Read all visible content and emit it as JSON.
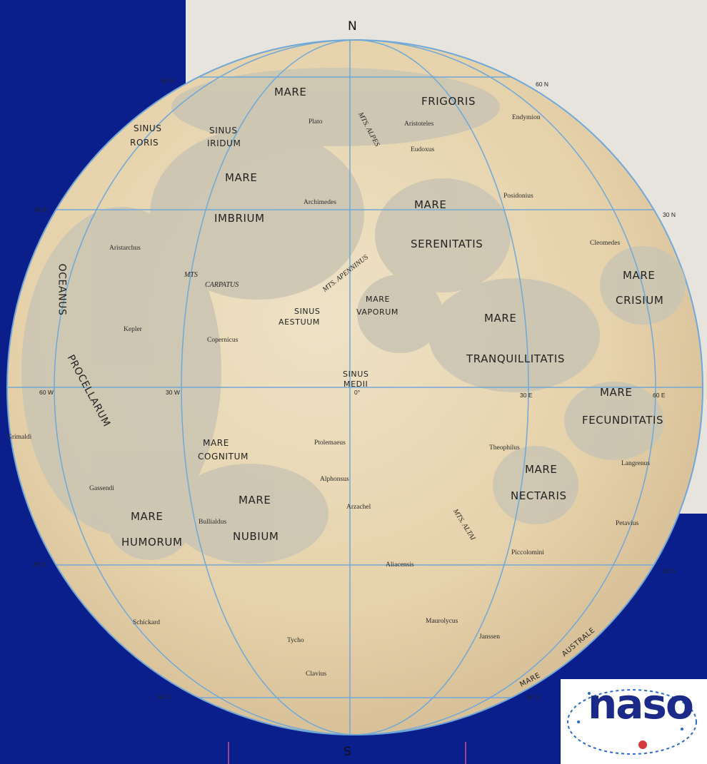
{
  "poles": {
    "north": "N",
    "south": "S"
  },
  "grid_labels": [
    {
      "text": "60 N"
    },
    {
      "text": "60 N"
    },
    {
      "text": "30 N"
    },
    {
      "text": "30 N"
    },
    {
      "text": "60 W"
    },
    {
      "text": "30 W"
    },
    {
      "text": "0°"
    },
    {
      "text": "30 E"
    },
    {
      "text": "60 E"
    },
    {
      "text": "30 S"
    },
    {
      "text": "30 S"
    },
    {
      "text": "60 S"
    },
    {
      "text": "60 S"
    }
  ],
  "maria": [
    {
      "text": "MARE"
    },
    {
      "text": "FRIGORIS"
    },
    {
      "text": "SINUS"
    },
    {
      "text": "RORIS"
    },
    {
      "text": "SINUS"
    },
    {
      "text": "IRIDUM"
    },
    {
      "text": "MARE"
    },
    {
      "text": "IMBRIUM"
    },
    {
      "text": "MARE"
    },
    {
      "text": "SERENITATIS"
    },
    {
      "text": "OCEANUS"
    },
    {
      "text": "MARE"
    },
    {
      "text": "CRISIUM"
    },
    {
      "text": "SINUS"
    },
    {
      "text": "AESTUUM"
    },
    {
      "text": "MARE"
    },
    {
      "text": "VAPORUM"
    },
    {
      "text": "MARE"
    },
    {
      "text": "TRANQUILLITATIS"
    },
    {
      "text": "PROCELLARUM"
    },
    {
      "text": "SINUS"
    },
    {
      "text": "MEDII"
    },
    {
      "text": "MARE"
    },
    {
      "text": "FECUNDITATIS"
    },
    {
      "text": "MARE"
    },
    {
      "text": "COGNITUM"
    },
    {
      "text": "MARE"
    },
    {
      "text": "NECTARIS"
    },
    {
      "text": "MARE"
    },
    {
      "text": "NUBIUM"
    },
    {
      "text": "MARE"
    },
    {
      "text": "HUMORUM"
    },
    {
      "text": "MARE"
    },
    {
      "text": "AUSTRALE"
    }
  ],
  "mountains": [
    {
      "text": "MTS. ALPES"
    },
    {
      "text": "MTS"
    },
    {
      "text": "CARPATUS"
    },
    {
      "text": "MTS. APENNINUS"
    },
    {
      "text": "MTS. ALTAI"
    }
  ],
  "craters": [
    {
      "text": "Plato"
    },
    {
      "text": "Aristoteles"
    },
    {
      "text": "Endymion"
    },
    {
      "text": "Eudoxus"
    },
    {
      "text": "Archimedes"
    },
    {
      "text": "Posidonius"
    },
    {
      "text": "Aristarchus"
    },
    {
      "text": "Cleomedes"
    },
    {
      "text": "Kepler"
    },
    {
      "text": "Copernicus"
    },
    {
      "text": "Grimaldi"
    },
    {
      "text": "Ptolemaeus"
    },
    {
      "text": "Theophilus"
    },
    {
      "text": "Langrenus"
    },
    {
      "text": "Alphonsus"
    },
    {
      "text": "Gassendi"
    },
    {
      "text": "Bullialdus"
    },
    {
      "text": "Arzachel"
    },
    {
      "text": "Petavius"
    },
    {
      "text": "Piccolomini"
    },
    {
      "text": "Aliacensis"
    },
    {
      "text": "Schickard"
    },
    {
      "text": "Maurolycus"
    },
    {
      "text": "Tycho"
    },
    {
      "text": "Janssen"
    },
    {
      "text": "Clavius"
    }
  ],
  "logo": {
    "text": "naso"
  },
  "colors": {
    "background": "#0a1e8c",
    "moon_highland": "#e9d8b6",
    "moon_mare": "#c8c2b0",
    "grid": "#6fa8d8"
  }
}
